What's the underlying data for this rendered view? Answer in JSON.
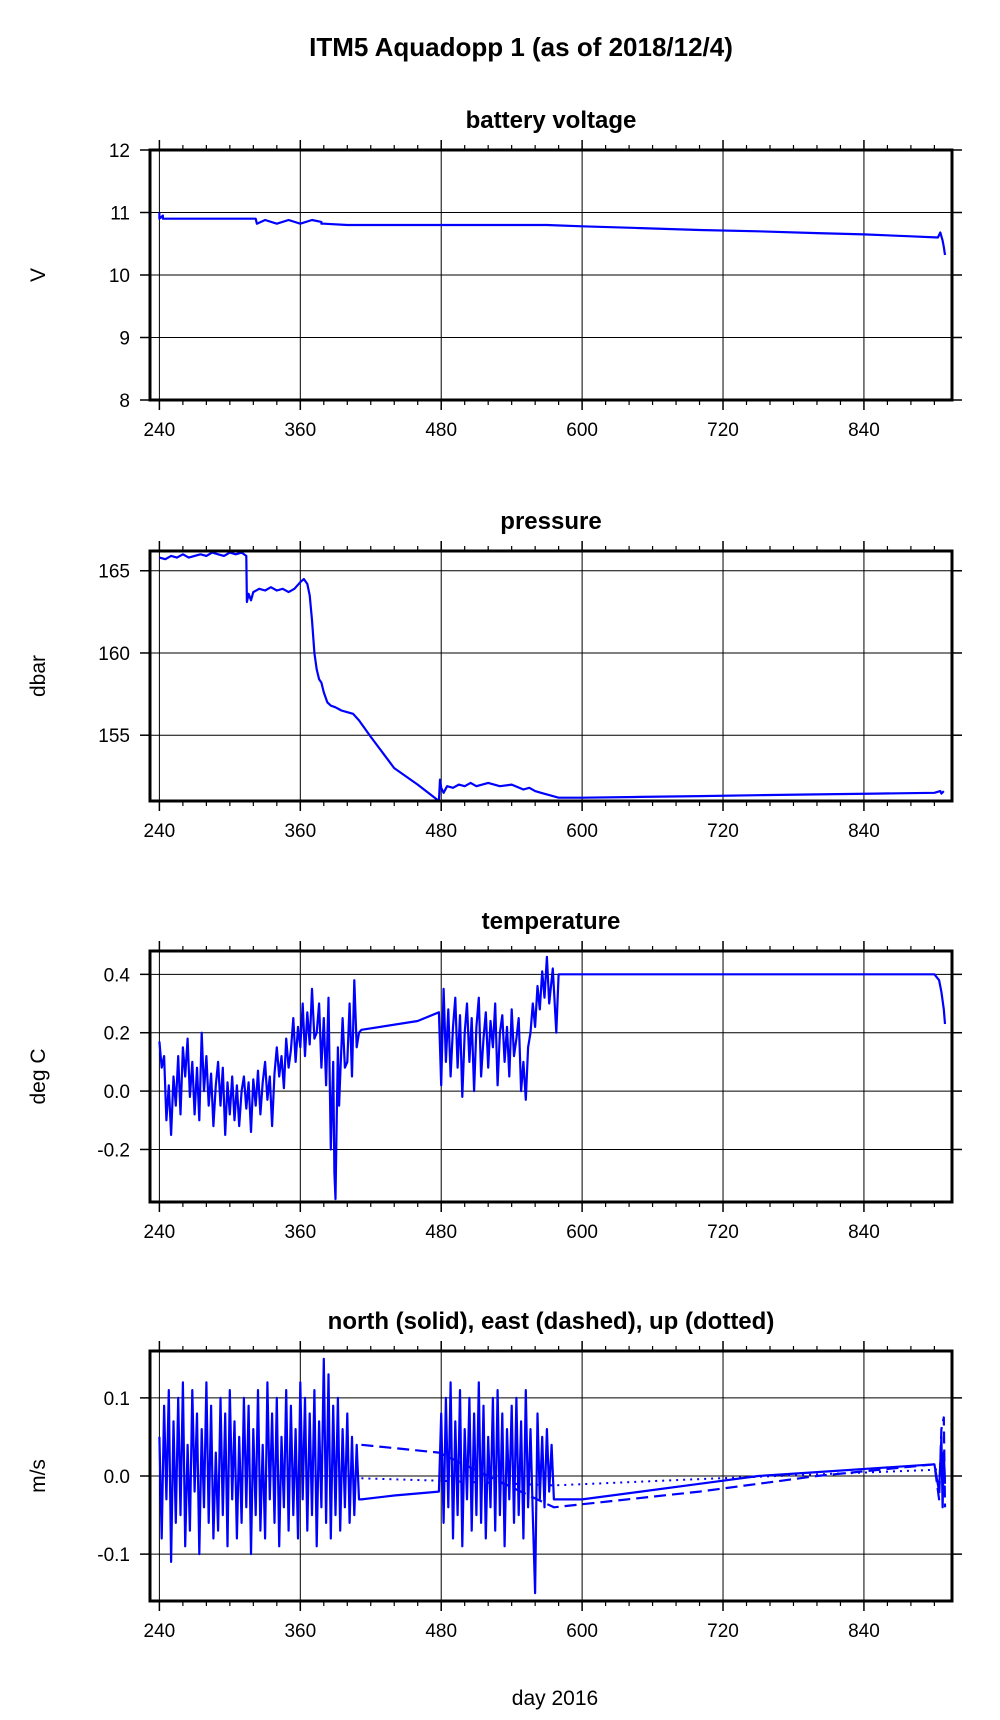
{
  "page": {
    "title": "ITM5 Aquadopp 1 (as of 2018/12/4)",
    "xlabel": "day 2016"
  },
  "colors": {
    "series": "#0000ff",
    "grid": "#000000",
    "frame": "#000000",
    "background": "#ffffff"
  },
  "chart_data": [
    {
      "type": "line",
      "title": "battery voltage",
      "xlabel": "",
      "ylabel": "V",
      "xlim": [
        232,
        915
      ],
      "ylim": [
        8,
        12
      ],
      "xticks": [
        240,
        360,
        480,
        600,
        720,
        840
      ],
      "yticks": [
        8,
        9,
        10,
        11,
        12
      ],
      "ytick_labels": [
        "8",
        "9",
        "10",
        "11",
        "12"
      ],
      "grid": true,
      "series": [
        {
          "style": "solid",
          "x": [
            240,
            240,
            243,
            243,
            245,
            250,
            300,
            322,
            323,
            330,
            340,
            350,
            360,
            370,
            378,
            378,
            380,
            400,
            440,
            480,
            520,
            570,
            600,
            650,
            700,
            750,
            800,
            840,
            880,
            903,
            905,
            907,
            908,
            909
          ],
          "y": [
            11.0,
            10.9,
            10.95,
            10.9,
            10.9,
            10.9,
            10.9,
            10.9,
            10.82,
            10.88,
            10.82,
            10.88,
            10.82,
            10.88,
            10.85,
            10.82,
            10.82,
            10.8,
            10.8,
            10.8,
            10.8,
            10.8,
            10.78,
            10.75,
            10.72,
            10.7,
            10.67,
            10.65,
            10.62,
            10.6,
            10.68,
            10.55,
            10.45,
            10.32
          ]
        }
      ]
    },
    {
      "type": "line",
      "title": "pressure",
      "xlabel": "",
      "ylabel": "dbar",
      "xlim": [
        232,
        915
      ],
      "ylim": [
        151,
        166.2
      ],
      "xticks": [
        240,
        360,
        480,
        600,
        720,
        840
      ],
      "yticks": [
        155,
        160,
        165
      ],
      "ytick_labels": [
        "155",
        "160",
        "165"
      ],
      "grid": true,
      "series": [
        {
          "style": "solid",
          "x": [
            240,
            245,
            250,
            255,
            260,
            265,
            270,
            275,
            280,
            285,
            290,
            295,
            300,
            305,
            310,
            314,
            314.5,
            316,
            318,
            320,
            325,
            330,
            335,
            340,
            345,
            350,
            355,
            360,
            363,
            366,
            368,
            370,
            372,
            374,
            376,
            378,
            380,
            383,
            386,
            390,
            395,
            400,
            405,
            410,
            420,
            440,
            460,
            478,
            479,
            480,
            482,
            485,
            490,
            495,
            500,
            505,
            510,
            520,
            530,
            540,
            550,
            555,
            560,
            565,
            570,
            575,
            580,
            600,
            650,
            700,
            750,
            800,
            850,
            900,
            905,
            906,
            908
          ],
          "y": [
            165.8,
            165.7,
            165.9,
            165.8,
            166.0,
            165.8,
            165.9,
            166.0,
            165.9,
            166.1,
            166.0,
            165.9,
            166.1,
            166.0,
            166.1,
            165.9,
            163.1,
            163.6,
            163.2,
            163.7,
            163.9,
            163.8,
            164.0,
            163.8,
            163.9,
            163.7,
            163.9,
            164.3,
            164.5,
            164.2,
            163.5,
            162.0,
            160.0,
            159.0,
            158.4,
            158.2,
            157.6,
            157.0,
            156.8,
            156.7,
            156.5,
            156.4,
            156.3,
            155.9,
            154.9,
            153.0,
            152.0,
            151.0,
            152.3,
            151.8,
            151.5,
            151.9,
            151.8,
            152.0,
            151.9,
            152.1,
            151.9,
            152.1,
            151.9,
            152.0,
            151.7,
            151.8,
            151.6,
            151.5,
            151.4,
            151.3,
            151.2,
            151.2,
            151.25,
            151.3,
            151.35,
            151.4,
            151.45,
            151.5,
            151.6,
            151.45,
            151.6
          ]
        }
      ]
    },
    {
      "type": "line",
      "title": "temperature",
      "xlabel": "",
      "ylabel": "deg C",
      "xlim": [
        232,
        915
      ],
      "ylim": [
        -0.38,
        0.48
      ],
      "xticks": [
        240,
        360,
        480,
        600,
        720,
        840
      ],
      "yticks": [
        -0.2,
        0.0,
        0.2,
        0.4
      ],
      "ytick_labels": [
        "-0.2",
        "0.0",
        "0.2",
        "0.4"
      ],
      "grid": true,
      "series": [
        {
          "style": "solid",
          "x": [
            240,
            242,
            244,
            246,
            248,
            250,
            252,
            254,
            256,
            258,
            260,
            262,
            264,
            266,
            268,
            270,
            272,
            274,
            276,
            278,
            280,
            282,
            284,
            286,
            288,
            290,
            292,
            294,
            296,
            298,
            300,
            302,
            304,
            306,
            308,
            310,
            312,
            314,
            316,
            318,
            320,
            322,
            324,
            326,
            328,
            330,
            332,
            334,
            336,
            338,
            340,
            342,
            344,
            346,
            348,
            350,
            352,
            354,
            356,
            358,
            360,
            362,
            364,
            366,
            368,
            370,
            372,
            374,
            376,
            378,
            380,
            382,
            384,
            386,
            388,
            389,
            390,
            391,
            392,
            393,
            394,
            396,
            398,
            400,
            402,
            404,
            406,
            408,
            410,
            412,
            460,
            478,
            480,
            482,
            484,
            486,
            488,
            490,
            492,
            494,
            496,
            498,
            500,
            502,
            504,
            506,
            508,
            510,
            512,
            514,
            516,
            518,
            520,
            522,
            524,
            526,
            528,
            530,
            532,
            534,
            536,
            538,
            540,
            542,
            544,
            546,
            548,
            550,
            552,
            554,
            556,
            558,
            560,
            562,
            564,
            566,
            568,
            570,
            572,
            575,
            578,
            580,
            600,
            650,
            700,
            750,
            800,
            850,
            900,
            904,
            906,
            908,
            909
          ],
          "y": [
            0.17,
            0.08,
            0.12,
            -0.1,
            0.02,
            -0.15,
            0.05,
            -0.05,
            0.12,
            -0.08,
            0.15,
            0.05,
            0.18,
            -0.02,
            0.1,
            -0.08,
            0.08,
            -0.1,
            0.2,
            0.0,
            0.12,
            -0.05,
            0.06,
            -0.12,
            0.02,
            0.1,
            -0.05,
            0.08,
            -0.15,
            0.03,
            -0.08,
            0.05,
            -0.1,
            0.02,
            -0.12,
            0.0,
            0.05,
            -0.06,
            0.03,
            -0.14,
            0.04,
            -0.05,
            0.07,
            -0.08,
            0.03,
            0.1,
            -0.03,
            0.05,
            -0.12,
            0.06,
            0.15,
            0.05,
            0.12,
            0.01,
            0.18,
            0.08,
            0.14,
            0.25,
            0.1,
            0.22,
            0.15,
            0.3,
            0.12,
            0.27,
            0.16,
            0.35,
            0.18,
            0.2,
            0.3,
            0.08,
            0.25,
            0.02,
            0.32,
            -0.2,
            0.1,
            -0.28,
            -0.37,
            -0.1,
            0.15,
            -0.05,
            0.05,
            0.25,
            0.08,
            0.1,
            0.3,
            0.05,
            0.38,
            0.15,
            0.2,
            0.21,
            0.24,
            0.27,
            0.02,
            0.35,
            0.1,
            0.28,
            0.05,
            0.22,
            0.32,
            0.08,
            0.26,
            -0.02,
            0.2,
            0.3,
            0.1,
            0.25,
            0.0,
            0.22,
            0.32,
            0.05,
            0.18,
            0.27,
            0.08,
            0.24,
            0.15,
            0.3,
            0.02,
            0.2,
            0.26,
            0.1,
            0.22,
            0.05,
            0.28,
            0.12,
            0.18,
            0.25,
            0.0,
            0.1,
            -0.03,
            0.15,
            0.2,
            0.3,
            0.22,
            0.36,
            0.28,
            0.41,
            0.32,
            0.46,
            0.3,
            0.42,
            0.2,
            0.4,
            0.4,
            0.4,
            0.4,
            0.4,
            0.4,
            0.4,
            0.4,
            0.38,
            0.34,
            0.28,
            0.23
          ]
        }
      ]
    },
    {
      "type": "line",
      "title": "north (solid), east (dashed), up (dotted)",
      "xlabel": "day 2016",
      "ylabel": "m/s",
      "xlim": [
        232,
        915
      ],
      "ylim": [
        -0.16,
        0.16
      ],
      "xticks": [
        240,
        360,
        480,
        600,
        720,
        840
      ],
      "yticks": [
        -0.1,
        0.0,
        0.1
      ],
      "ytick_labels": [
        "-0.1",
        "0.0",
        "0.1"
      ],
      "grid": true,
      "series": [
        {
          "style": "solid",
          "x": [
            240,
            242,
            244,
            246,
            248,
            250,
            252,
            254,
            256,
            258,
            260,
            262,
            264,
            266,
            268,
            270,
            272,
            274,
            276,
            278,
            280,
            282,
            284,
            286,
            288,
            290,
            292,
            294,
            296,
            298,
            300,
            302,
            304,
            306,
            308,
            310,
            312,
            314,
            316,
            318,
            320,
            322,
            324,
            326,
            328,
            330,
            332,
            334,
            336,
            338,
            340,
            342,
            344,
            346,
            348,
            350,
            352,
            354,
            356,
            358,
            360,
            362,
            364,
            366,
            368,
            370,
            372,
            374,
            376,
            378,
            380,
            382,
            384,
            386,
            388,
            390,
            392,
            394,
            396,
            398,
            400,
            402,
            404,
            406,
            408,
            410,
            412,
            440,
            478,
            480,
            482,
            484,
            486,
            488,
            490,
            492,
            494,
            496,
            498,
            500,
            502,
            504,
            506,
            508,
            510,
            512,
            514,
            516,
            518,
            520,
            522,
            524,
            526,
            528,
            530,
            532,
            534,
            536,
            538,
            540,
            542,
            544,
            546,
            548,
            550,
            552,
            554,
            556,
            558,
            560,
            562,
            564,
            566,
            568,
            570,
            572,
            574,
            576,
            600,
            650,
            700,
            750,
            800,
            850,
            900,
            904,
            906,
            907,
            908,
            909
          ],
          "y": [
            0.05,
            -0.08,
            0.09,
            -0.03,
            0.11,
            -0.11,
            0.07,
            -0.06,
            0.1,
            -0.05,
            0.12,
            -0.09,
            0.04,
            -0.07,
            0.11,
            -0.02,
            0.08,
            -0.1,
            0.06,
            -0.04,
            0.12,
            -0.06,
            0.09,
            -0.08,
            0.03,
            -0.07,
            0.1,
            -0.05,
            0.08,
            -0.09,
            0.11,
            -0.03,
            0.07,
            -0.08,
            0.05,
            -0.06,
            0.1,
            -0.04,
            0.09,
            -0.1,
            0.06,
            -0.05,
            0.11,
            -0.07,
            0.04,
            -0.08,
            0.12,
            -0.03,
            0.08,
            -0.06,
            0.1,
            -0.09,
            0.05,
            -0.04,
            0.11,
            -0.07,
            0.09,
            -0.05,
            0.06,
            -0.08,
            0.12,
            -0.03,
            0.1,
            -0.07,
            0.08,
            -0.05,
            0.11,
            -0.09,
            0.07,
            -0.04,
            0.15,
            -0.06,
            0.13,
            -0.08,
            0.09,
            -0.05,
            0.1,
            -0.07,
            0.06,
            -0.04,
            0.08,
            -0.06,
            0.05,
            -0.05,
            0.04,
            -0.03,
            -0.03,
            -0.025,
            -0.02,
            0.08,
            -0.06,
            0.1,
            -0.04,
            0.12,
            -0.08,
            0.07,
            -0.05,
            0.11,
            -0.09,
            0.06,
            -0.03,
            0.1,
            -0.07,
            0.08,
            -0.05,
            0.12,
            -0.06,
            0.09,
            -0.08,
            0.05,
            -0.04,
            0.1,
            -0.07,
            0.11,
            -0.05,
            0.08,
            -0.09,
            0.06,
            -0.03,
            0.09,
            -0.06,
            0.1,
            -0.05,
            0.07,
            -0.08,
            0.11,
            -0.04,
            0.06,
            -0.05,
            -0.15,
            0.08,
            -0.03,
            0.05,
            -0.04,
            0.06,
            -0.02,
            0.04,
            -0.03,
            -0.03,
            -0.02,
            -0.01,
            0.0,
            0.005,
            0.01,
            0.015,
            -0.02,
            0.05,
            -0.04,
            0.03,
            -0.01
          ]
        },
        {
          "style": "dashed",
          "x": [
            412,
            478,
            576,
            700,
            800,
            900,
            904,
            906,
            908,
            909
          ],
          "y": [
            0.04,
            0.03,
            -0.04,
            -0.02,
            0.0,
            0.015,
            -0.03,
            0.06,
            0.075,
            -0.04
          ]
        },
        {
          "style": "dotted",
          "x": [
            412,
            478,
            576,
            700,
            800,
            900,
            909
          ],
          "y": [
            -0.003,
            -0.006,
            -0.012,
            -0.004,
            0.002,
            0.008,
            0.01
          ]
        }
      ]
    }
  ]
}
